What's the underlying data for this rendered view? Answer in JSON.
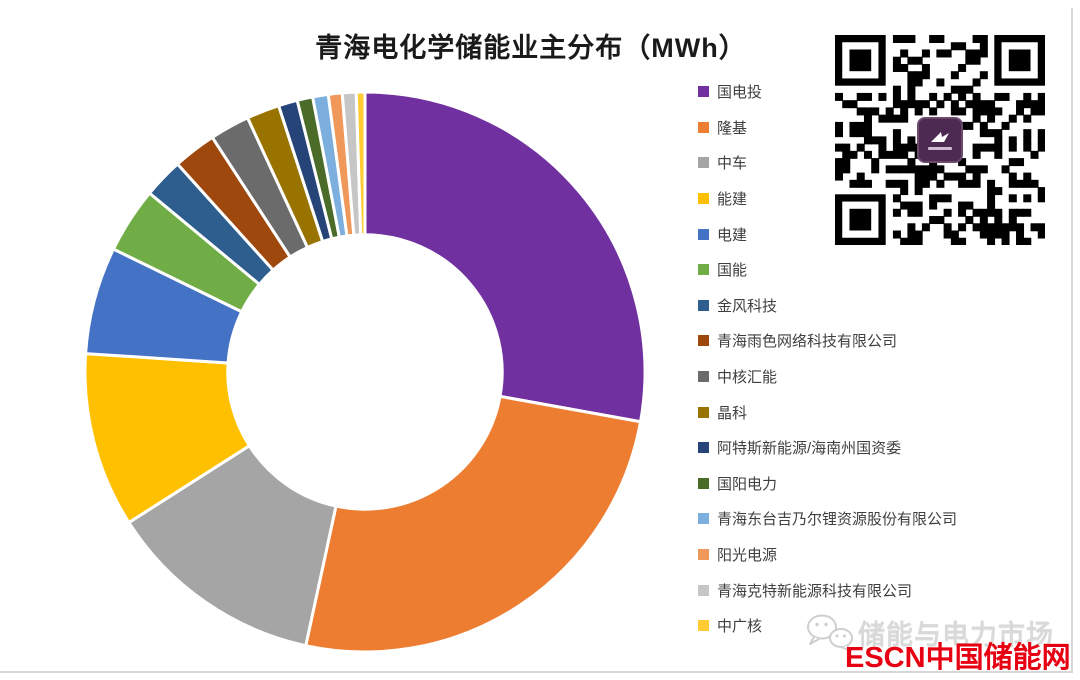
{
  "page": {
    "background": "#ffffff",
    "border_color": "#d6d6d6"
  },
  "title": "青海电化学储能业主分布（MWh）",
  "chart_data": {
    "type": "pie",
    "subtype": "donut",
    "title": "青海电化学储能业主分布（MWh）",
    "unit": "MWh",
    "legend_position": "right",
    "start_angle_deg": 0,
    "direction": "clockwise",
    "donut_hole_ratio": 0.49,
    "values_are_visual_estimates_pct": true,
    "slices": [
      {
        "label": "国电投",
        "pct": 27.9,
        "color": "#7030A0"
      },
      {
        "label": "隆基",
        "pct": 25.6,
        "color": "#ED7D31"
      },
      {
        "label": "中车",
        "pct": 12.6,
        "color": "#A5A5A5"
      },
      {
        "label": "能建",
        "pct": 10.1,
        "color": "#FFC000"
      },
      {
        "label": "电建",
        "pct": 6.2,
        "color": "#4472C4"
      },
      {
        "label": "国能",
        "pct": 3.8,
        "color": "#70AD47"
      },
      {
        "label": "金风科技",
        "pct": 2.3,
        "color": "#2D5E8E"
      },
      {
        "label": "青海雨色网络科技有限公司",
        "pct": 2.5,
        "color": "#9E480E"
      },
      {
        "label": "中核汇能",
        "pct": 2.3,
        "color": "#6B6B6B"
      },
      {
        "label": "晶科",
        "pct": 1.9,
        "color": "#997300"
      },
      {
        "label": "阿特斯新能源/海南州国资委",
        "pct": 1.1,
        "color": "#264478"
      },
      {
        "label": "国阳电力",
        "pct": 0.9,
        "color": "#4A6C28"
      },
      {
        "label": "青海东台吉乃尔锂资源股份有限公司",
        "pct": 0.9,
        "color": "#7CAFDD"
      },
      {
        "label": "阳光电源",
        "pct": 0.8,
        "color": "#F0975A"
      },
      {
        "label": "青海克特新能源科技有限公司",
        "pct": 0.8,
        "color": "#C6C6C6"
      },
      {
        "label": "中广核",
        "pct": 0.5,
        "color": "#FFCD33"
      }
    ]
  },
  "qr_code": {
    "present": true,
    "center_logo_color": "#4d2a52"
  },
  "watermark": {
    "wechat_account_text": "储能与电力市场",
    "brand_text": "ESCN中国储能网",
    "brand_color": "#e60012",
    "gray_color": "#d9d9d9"
  }
}
